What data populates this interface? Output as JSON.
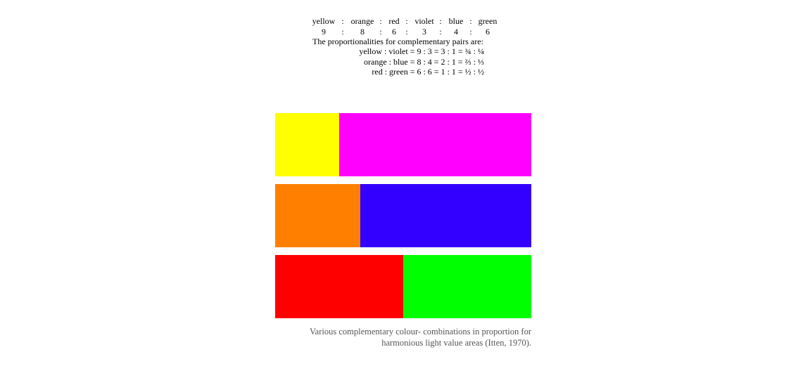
{
  "header": {
    "names": [
      "yellow",
      "orange",
      "red",
      "violet",
      "blue",
      "green"
    ],
    "values": [
      9,
      8,
      6,
      3,
      4,
      6
    ],
    "separator": ":"
  },
  "intro": "The proportionalities for complementary pairs are:",
  "pairs": [
    "yellow : violet = 9 : 3 = 3 : 1 = ¾ : ¼",
    "orange : blue = 8 : 4 = 2 : 1 = ⅔ : ⅓",
    "red : green = 6 : 6 = 1 : 1 = ½ : ½"
  ],
  "bars": [
    {
      "colors": [
        "#ffff00",
        "#ff00ff"
      ]
    },
    {
      "colors": [
        "#ff7f00",
        "#3300ff"
      ]
    },
    {
      "colors": [
        "#ff0000",
        "#00ff00"
      ]
    }
  ],
  "caption": [
    "Various complementary colour- combinations in proportion for",
    "harmonious light value areas (Itten, 1970)."
  ]
}
